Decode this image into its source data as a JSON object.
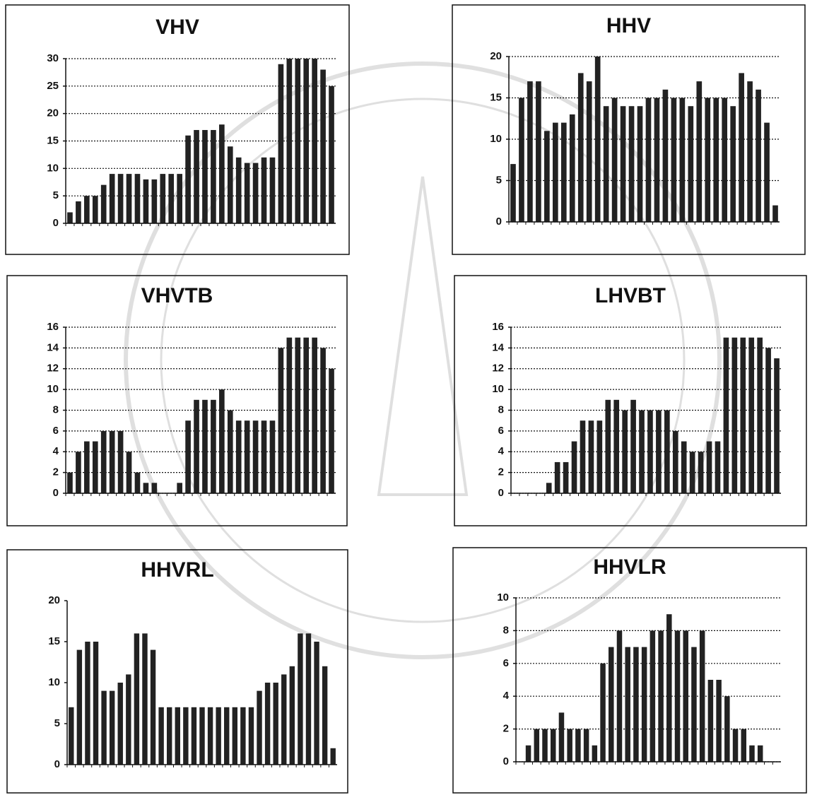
{
  "chart_data": [
    {
      "type": "bar",
      "title": "VHV",
      "color": "#222222",
      "grid": true,
      "categories": [
        null,
        null,
        null,
        null,
        null,
        null,
        null,
        null,
        null,
        null,
        null,
        null,
        null,
        null,
        null,
        null,
        null,
        null,
        null,
        null,
        null,
        null,
        null,
        null,
        null,
        null,
        null,
        null,
        null,
        null,
        null,
        null
      ],
      "values": [
        2,
        4,
        5,
        5,
        7,
        9,
        9,
        9,
        9,
        8,
        8,
        9,
        9,
        9,
        16,
        17,
        17,
        17,
        18,
        14,
        12,
        11,
        11,
        12,
        12,
        29,
        30,
        30,
        30,
        30,
        28,
        25
      ],
      "ylim": [
        0,
        30
      ],
      "yticks": [
        0,
        5,
        10,
        15,
        20,
        25,
        30
      ]
    },
    {
      "type": "bar",
      "title": "HHV",
      "color": "#222222",
      "grid": true,
      "categories": [
        null,
        null,
        null,
        null,
        null,
        null,
        null,
        null,
        null,
        null,
        null,
        null,
        null,
        null,
        null,
        null,
        null,
        null,
        null,
        null,
        null,
        null,
        null,
        null,
        null,
        null,
        null,
        null,
        null,
        null,
        null,
        null
      ],
      "values": [
        7,
        15,
        17,
        17,
        11,
        12,
        12,
        13,
        18,
        17,
        20,
        14,
        15,
        14,
        14,
        14,
        15,
        15,
        16,
        15,
        15,
        14,
        17,
        15,
        15,
        15,
        14,
        18,
        17,
        16,
        12,
        2
      ],
      "ylim": [
        0,
        20
      ],
      "yticks": [
        0,
        5,
        10,
        15,
        20
      ]
    },
    {
      "type": "bar",
      "title": "VHVTB",
      "color": "#222222",
      "grid": true,
      "categories": [
        null,
        null,
        null,
        null,
        null,
        null,
        null,
        null,
        null,
        null,
        null,
        null,
        null,
        null,
        null,
        null,
        null,
        null,
        null,
        null,
        null,
        null,
        null,
        null,
        null,
        null,
        null,
        null,
        null,
        null,
        null,
        null
      ],
      "values": [
        2,
        4,
        5,
        5,
        6,
        6,
        6,
        4,
        2,
        1,
        1,
        0,
        0,
        1,
        7,
        9,
        9,
        9,
        10,
        8,
        7,
        7,
        7,
        7,
        7,
        14,
        15,
        15,
        15,
        15,
        14,
        12
      ],
      "ylim": [
        0,
        16
      ],
      "yticks": [
        0,
        2,
        4,
        6,
        8,
        10,
        12,
        14,
        16
      ]
    },
    {
      "type": "bar",
      "title": "LHVBT",
      "color": "#222222",
      "grid": true,
      "categories": [
        null,
        null,
        null,
        null,
        null,
        null,
        null,
        null,
        null,
        null,
        null,
        null,
        null,
        null,
        null,
        null,
        null,
        null,
        null,
        null,
        null,
        null,
        null,
        null,
        null,
        null,
        null,
        null,
        null,
        null,
        null,
        null
      ],
      "values": [
        0,
        0,
        0,
        0,
        1,
        3,
        3,
        5,
        7,
        7,
        7,
        9,
        9,
        8,
        9,
        8,
        8,
        8,
        8,
        6,
        5,
        4,
        4,
        5,
        5,
        15,
        15,
        15,
        15,
        15,
        14,
        13
      ],
      "ylim": [
        0,
        16
      ],
      "yticks": [
        0,
        2,
        4,
        6,
        8,
        10,
        12,
        14,
        16
      ]
    },
    {
      "type": "bar",
      "title": "HHVRL",
      "color": "#222222",
      "grid": false,
      "categories": [
        null,
        null,
        null,
        null,
        null,
        null,
        null,
        null,
        null,
        null,
        null,
        null,
        null,
        null,
        null,
        null,
        null,
        null,
        null,
        null,
        null,
        null,
        null,
        null,
        null,
        null,
        null,
        null,
        null,
        null,
        null,
        null,
        null
      ],
      "values": [
        7,
        14,
        15,
        15,
        9,
        9,
        10,
        11,
        16,
        16,
        14,
        7,
        7,
        7,
        7,
        7,
        7,
        7,
        7,
        7,
        7,
        7,
        7,
        9,
        10,
        10,
        11,
        12,
        16,
        16,
        15,
        12,
        2
      ],
      "ylim": [
        0,
        20
      ],
      "yticks": [
        0,
        5,
        10,
        15,
        20
      ]
    },
    {
      "type": "bar",
      "title": "HHVLR",
      "color": "#222222",
      "grid": true,
      "categories": [
        null,
        null,
        null,
        null,
        null,
        null,
        null,
        null,
        null,
        null,
        null,
        null,
        null,
        null,
        null,
        null,
        null,
        null,
        null,
        null,
        null,
        null,
        null,
        null,
        null,
        null,
        null,
        null,
        null,
        null,
        null,
        null
      ],
      "values": [
        0,
        1,
        2,
        2,
        2,
        3,
        2,
        2,
        2,
        1,
        6,
        7,
        8,
        7,
        7,
        7,
        8,
        8,
        9,
        8,
        8,
        7,
        8,
        5,
        5,
        4,
        2,
        2,
        1,
        1,
        0,
        0
      ],
      "ylim": [
        0,
        10
      ],
      "yticks": [
        0,
        2,
        4,
        6,
        8,
        10
      ]
    }
  ]
}
